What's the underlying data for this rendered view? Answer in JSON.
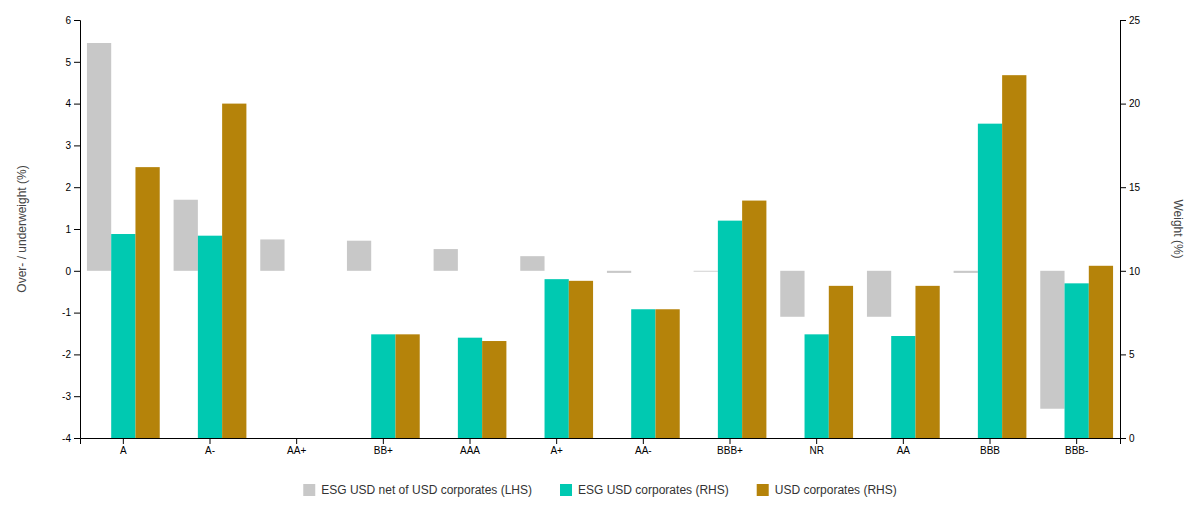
{
  "chart_data": {
    "type": "bar",
    "categories": [
      "A",
      "A-",
      "AA+",
      "BB+",
      "AAA",
      "A+",
      "AA-",
      "BBB+",
      "NR",
      "AA",
      "BBB",
      "BBB-"
    ],
    "series": [
      {
        "name": "ESG USD net of USD corporates (LHS)",
        "color": "#c8c8c8",
        "values": [
          5.45,
          1.7,
          0.75,
          0.72,
          0.52,
          0.35,
          -0.05,
          -0.02,
          -1.1,
          -1.1,
          -0.05,
          -3.3
        ]
      },
      {
        "name": "ESG USD corporates (RHS)",
        "color": "#00c9b1",
        "axis": "y2",
        "values": [
          12.2,
          12.1,
          null,
          6.2,
          6.0,
          9.5,
          7.7,
          13.0,
          6.2,
          6.1,
          18.8,
          9.25
        ]
      },
      {
        "name": "USD corporates (RHS)",
        "color": "#b5830a",
        "axis": "y2",
        "values": [
          16.2,
          20.0,
          null,
          6.2,
          5.8,
          9.4,
          7.7,
          14.2,
          9.1,
          9.1,
          21.7,
          10.3
        ]
      }
    ],
    "ylabel": "Over- / underweight (%)",
    "y2label": "Weight (%)",
    "ylim": [
      -4,
      6
    ],
    "yticks": [
      -4,
      -3,
      -2,
      -1,
      0,
      1,
      2,
      3,
      4,
      5,
      6
    ],
    "y2lim": [
      0,
      25
    ],
    "y2ticks": [
      0,
      5,
      10,
      15,
      20,
      25
    ],
    "legend": "bottom",
    "grid": false
  }
}
